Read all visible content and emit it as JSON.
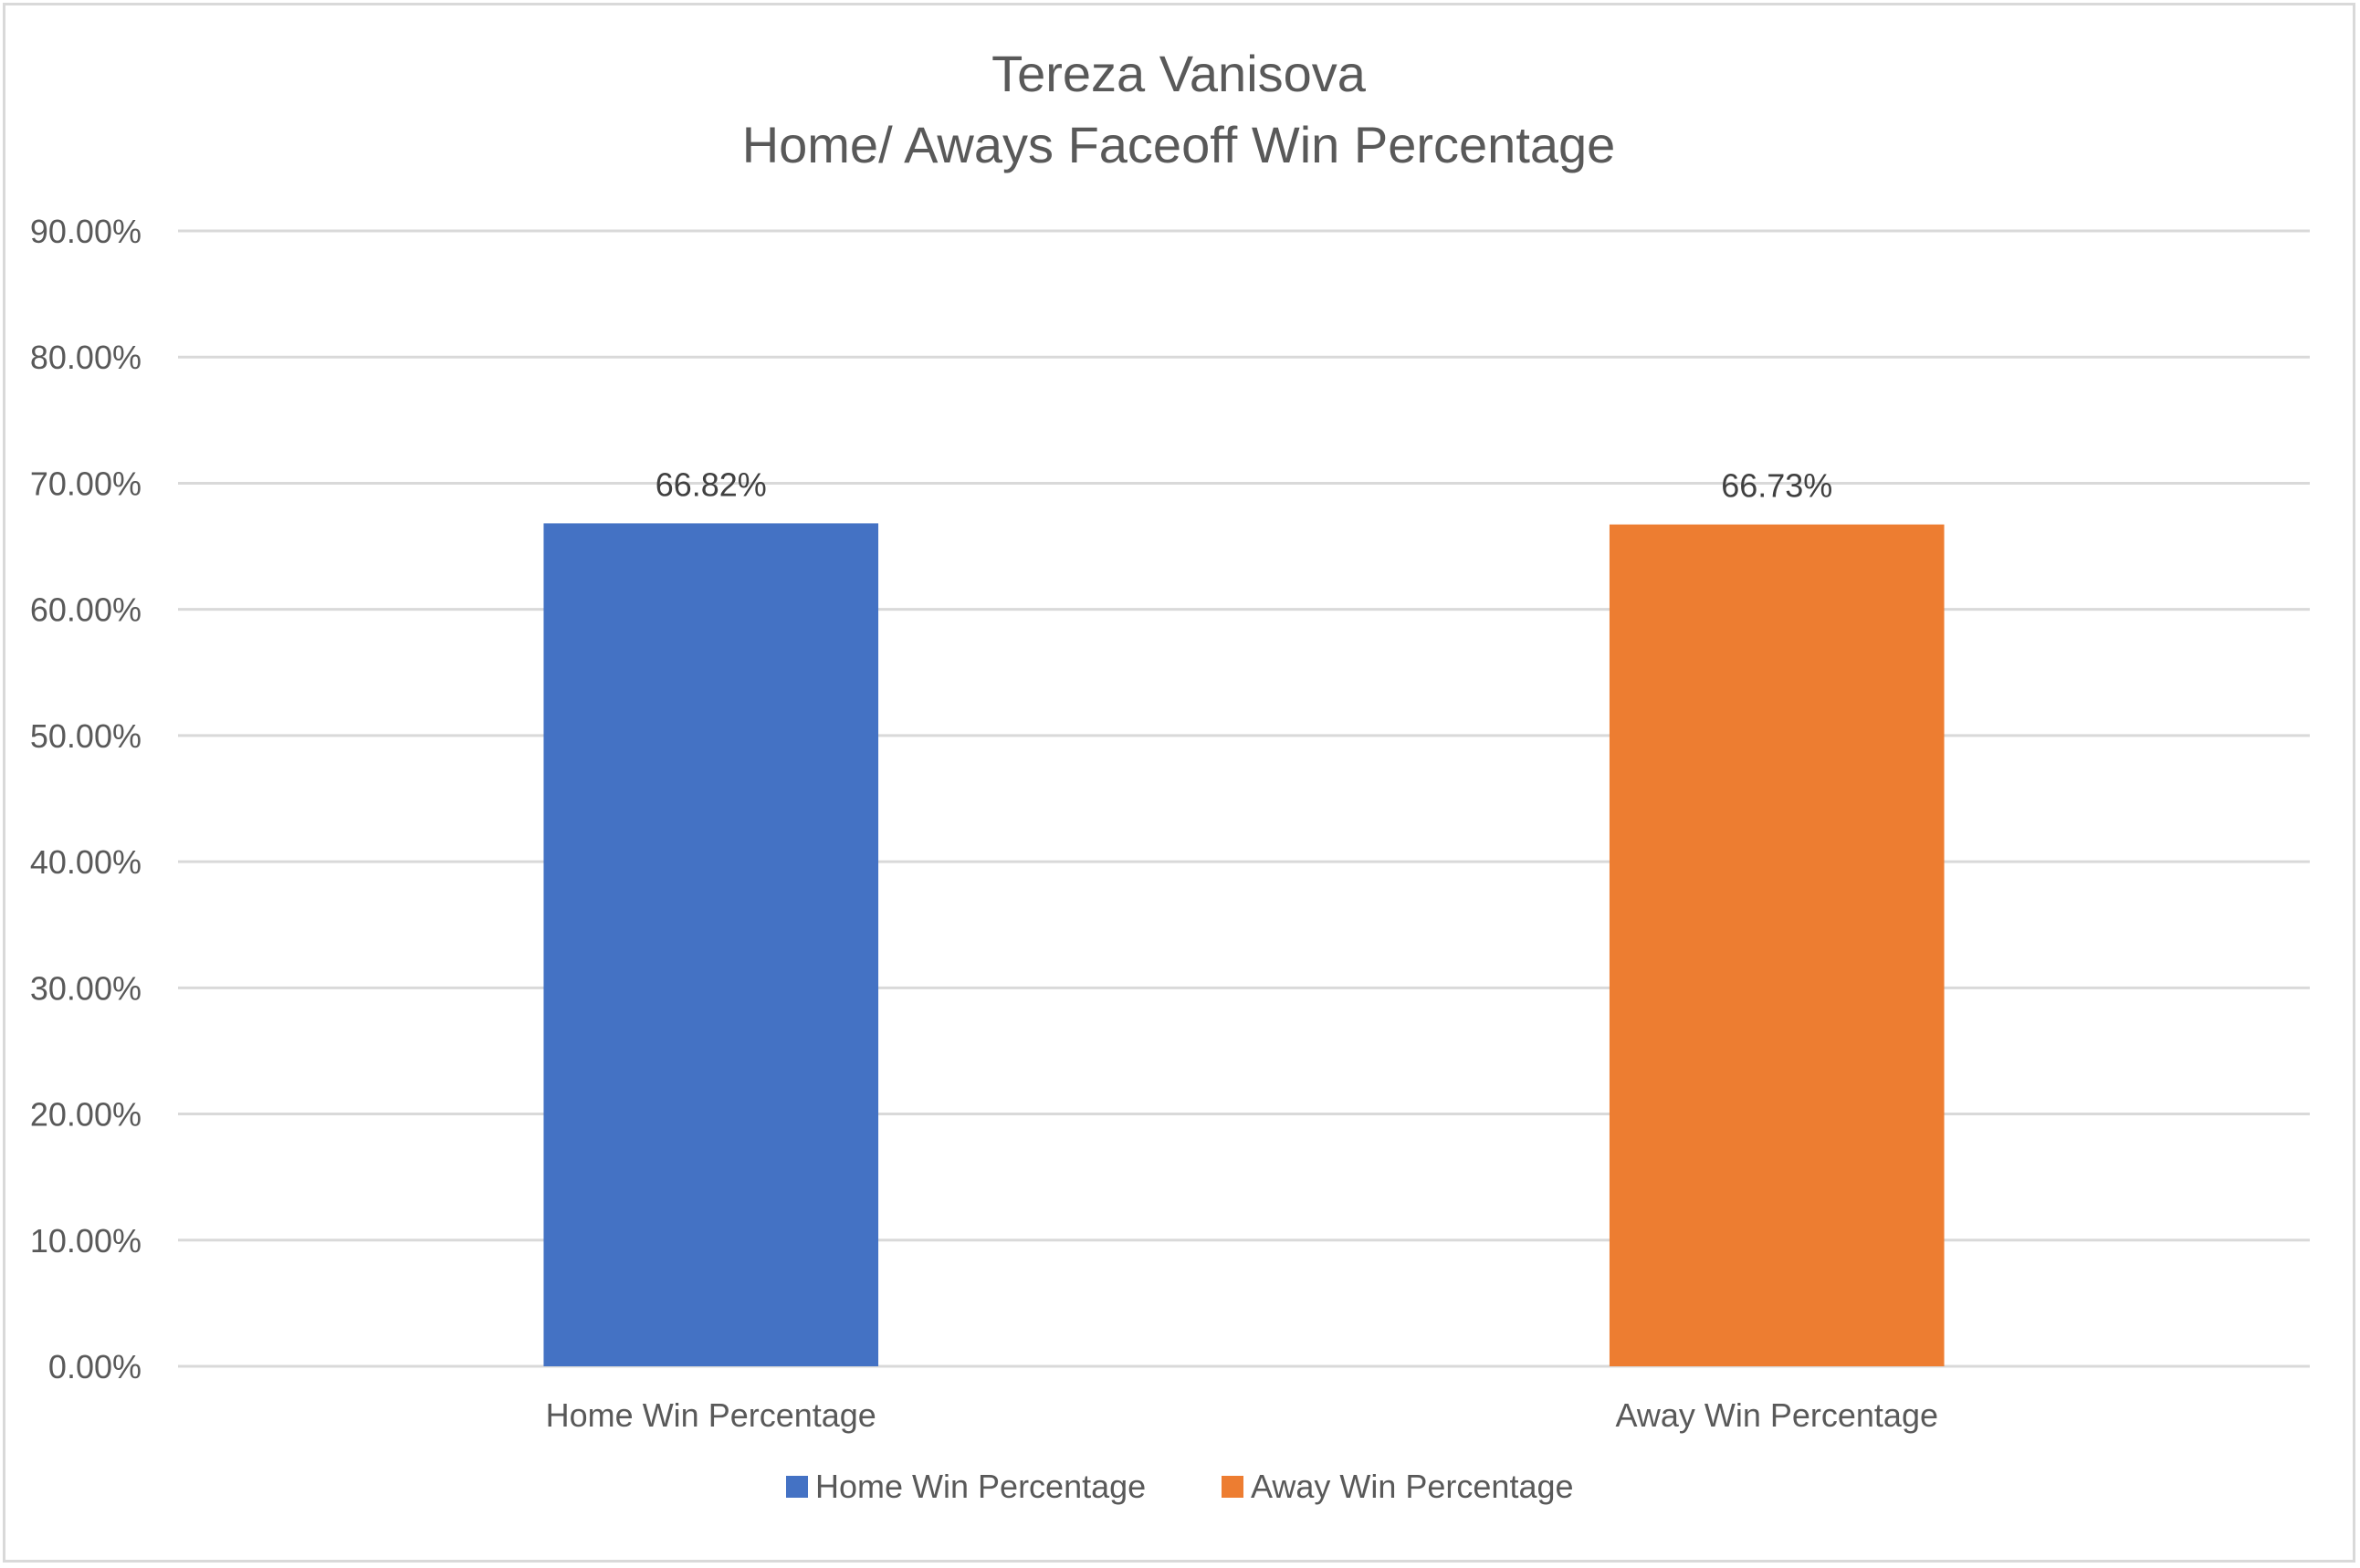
{
  "chart_data": {
    "type": "bar",
    "title_lines": [
      "Tereza Vanisova",
      "Home/ Aways Faceoff Win Percentage"
    ],
    "xlabel": "",
    "ylabel": "",
    "ylim": [
      0,
      90
    ],
    "y_ticks": [
      0,
      10,
      20,
      30,
      40,
      50,
      60,
      70,
      80,
      90
    ],
    "y_tick_labels": [
      "0.00%",
      "10.00%",
      "20.00%",
      "30.00%",
      "40.00%",
      "50.00%",
      "60.00%",
      "70.00%",
      "80.00%",
      "90.00%"
    ],
    "categories": [
      "Home Win Percentage",
      "Away Win Percentage"
    ],
    "values": [
      66.82,
      66.73
    ],
    "value_labels": [
      "66.82%",
      "66.73%"
    ],
    "colors": [
      "#4472c4",
      "#ed7d31"
    ],
    "grid": true,
    "legend_position": "bottom",
    "legend": [
      {
        "label": "Home Win Percentage",
        "color": "#4472c4"
      },
      {
        "label": "Away Win Percentage",
        "color": "#ed7d31"
      }
    ]
  }
}
